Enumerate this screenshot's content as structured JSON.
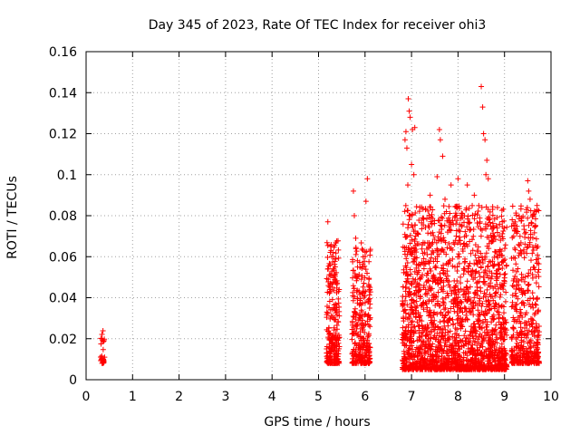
{
  "chart_data": {
    "type": "scatter",
    "title": "Day 345 of 2023, Rate Of TEC Index for receiver ohi3",
    "xlabel": "GPS time / hours",
    "ylabel": "ROTI / TECUs",
    "xlim": [
      0,
      10
    ],
    "ylim": [
      0,
      0.16
    ],
    "xticks": [
      "0",
      "1",
      "2",
      "3",
      "4",
      "5",
      "6",
      "7",
      "8",
      "9",
      "10"
    ],
    "yticks": [
      "0",
      "0.02",
      "0.04",
      "0.06",
      "0.08",
      "0.1",
      "0.12",
      "0.14",
      "0.16"
    ],
    "grid": true,
    "marker": "+",
    "color": "#ff0000",
    "clusters": [
      {
        "x_range": [
          0.3,
          0.4
        ],
        "y_range": [
          0.008,
          0.024
        ],
        "count": 30
      },
      {
        "x_range": [
          5.17,
          5.45
        ],
        "y_range": [
          0.008,
          0.068
        ],
        "count": 260
      },
      {
        "x_range": [
          5.72,
          6.12
        ],
        "y_range": [
          0.008,
          0.068
        ],
        "count": 300
      },
      {
        "x_range": [
          6.8,
          9.05
        ],
        "y_range": [
          0.005,
          0.085
        ],
        "count": 2000
      },
      {
        "x_range": [
          9.15,
          9.75
        ],
        "y_range": [
          0.008,
          0.085
        ],
        "count": 450
      }
    ],
    "outliers": [
      {
        "x": 5.2,
        "y": 0.077
      },
      {
        "x": 5.75,
        "y": 0.092
      },
      {
        "x": 5.77,
        "y": 0.08
      },
      {
        "x": 6.05,
        "y": 0.098
      },
      {
        "x": 6.02,
        "y": 0.087
      },
      {
        "x": 5.8,
        "y": 0.069
      },
      {
        "x": 6.88,
        "y": 0.121
      },
      {
        "x": 6.86,
        "y": 0.117
      },
      {
        "x": 6.9,
        "y": 0.113
      },
      {
        "x": 6.93,
        "y": 0.137
      },
      {
        "x": 6.95,
        "y": 0.131
      },
      {
        "x": 6.97,
        "y": 0.128
      },
      {
        "x": 7.02,
        "y": 0.122
      },
      {
        "x": 7.07,
        "y": 0.123
      },
      {
        "x": 7.0,
        "y": 0.105
      },
      {
        "x": 6.92,
        "y": 0.095
      },
      {
        "x": 7.05,
        "y": 0.1
      },
      {
        "x": 7.6,
        "y": 0.122
      },
      {
        "x": 7.62,
        "y": 0.117
      },
      {
        "x": 7.67,
        "y": 0.109
      },
      {
        "x": 7.55,
        "y": 0.099
      },
      {
        "x": 7.72,
        "y": 0.088
      },
      {
        "x": 7.85,
        "y": 0.095
      },
      {
        "x": 8.0,
        "y": 0.098
      },
      {
        "x": 8.2,
        "y": 0.095
      },
      {
        "x": 8.5,
        "y": 0.143
      },
      {
        "x": 8.53,
        "y": 0.133
      },
      {
        "x": 8.55,
        "y": 0.12
      },
      {
        "x": 8.58,
        "y": 0.117
      },
      {
        "x": 8.62,
        "y": 0.107
      },
      {
        "x": 8.6,
        "y": 0.1
      },
      {
        "x": 8.65,
        "y": 0.098
      },
      {
        "x": 8.7,
        "y": 0.075
      },
      {
        "x": 8.35,
        "y": 0.09
      },
      {
        "x": 7.4,
        "y": 0.09
      },
      {
        "x": 7.3,
        "y": 0.083
      },
      {
        "x": 9.5,
        "y": 0.097
      },
      {
        "x": 9.52,
        "y": 0.092
      },
      {
        "x": 9.55,
        "y": 0.088
      },
      {
        "x": 9.7,
        "y": 0.085
      },
      {
        "x": 9.68,
        "y": 0.082
      }
    ]
  }
}
